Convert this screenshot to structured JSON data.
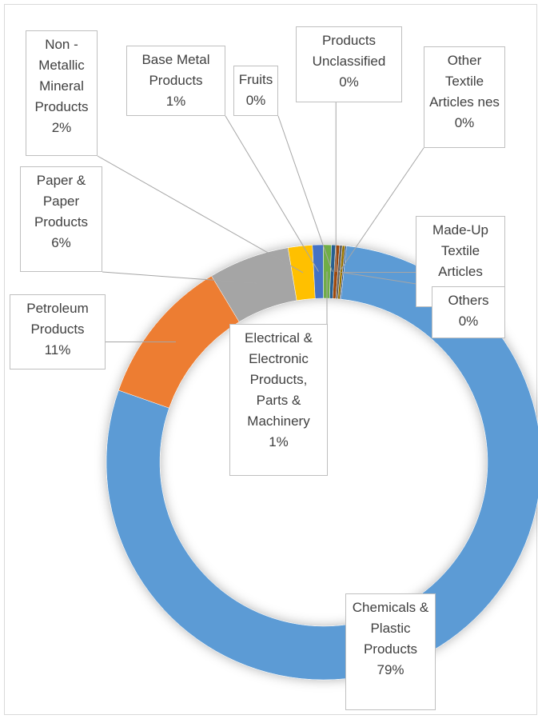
{
  "chart_data": {
    "type": "doughnut",
    "categories": [
      "Chemicals & Plastic Products",
      "Petroleum Products",
      "Paper & Paper Products",
      "Non - Metallic Mineral Products",
      "Base Metal Products",
      "Electrical & Electronic Products, Parts & Machinery",
      "Fruits",
      "Products Unclassified",
      "Other Textile Articles nes",
      "Made-Up Textile Articles",
      "Others"
    ],
    "values": [
      78.7,
      11.0,
      6.0,
      1.8,
      0.8,
      0.6,
      0.3,
      0.3,
      0.2,
      0.2,
      0.1
    ],
    "value_labels": [
      "79%",
      "11%",
      "6%",
      "2%",
      "1%",
      "1%",
      "0%",
      "0%",
      "0%",
      "0%",
      "0%"
    ],
    "colors": [
      "#5b9bd5",
      "#ed7d31",
      "#a5a5a5",
      "#ffc000",
      "#4472c4",
      "#70ad47",
      "#255e91",
      "#9e480e",
      "#636363",
      "#997300",
      "#264478"
    ]
  }
}
